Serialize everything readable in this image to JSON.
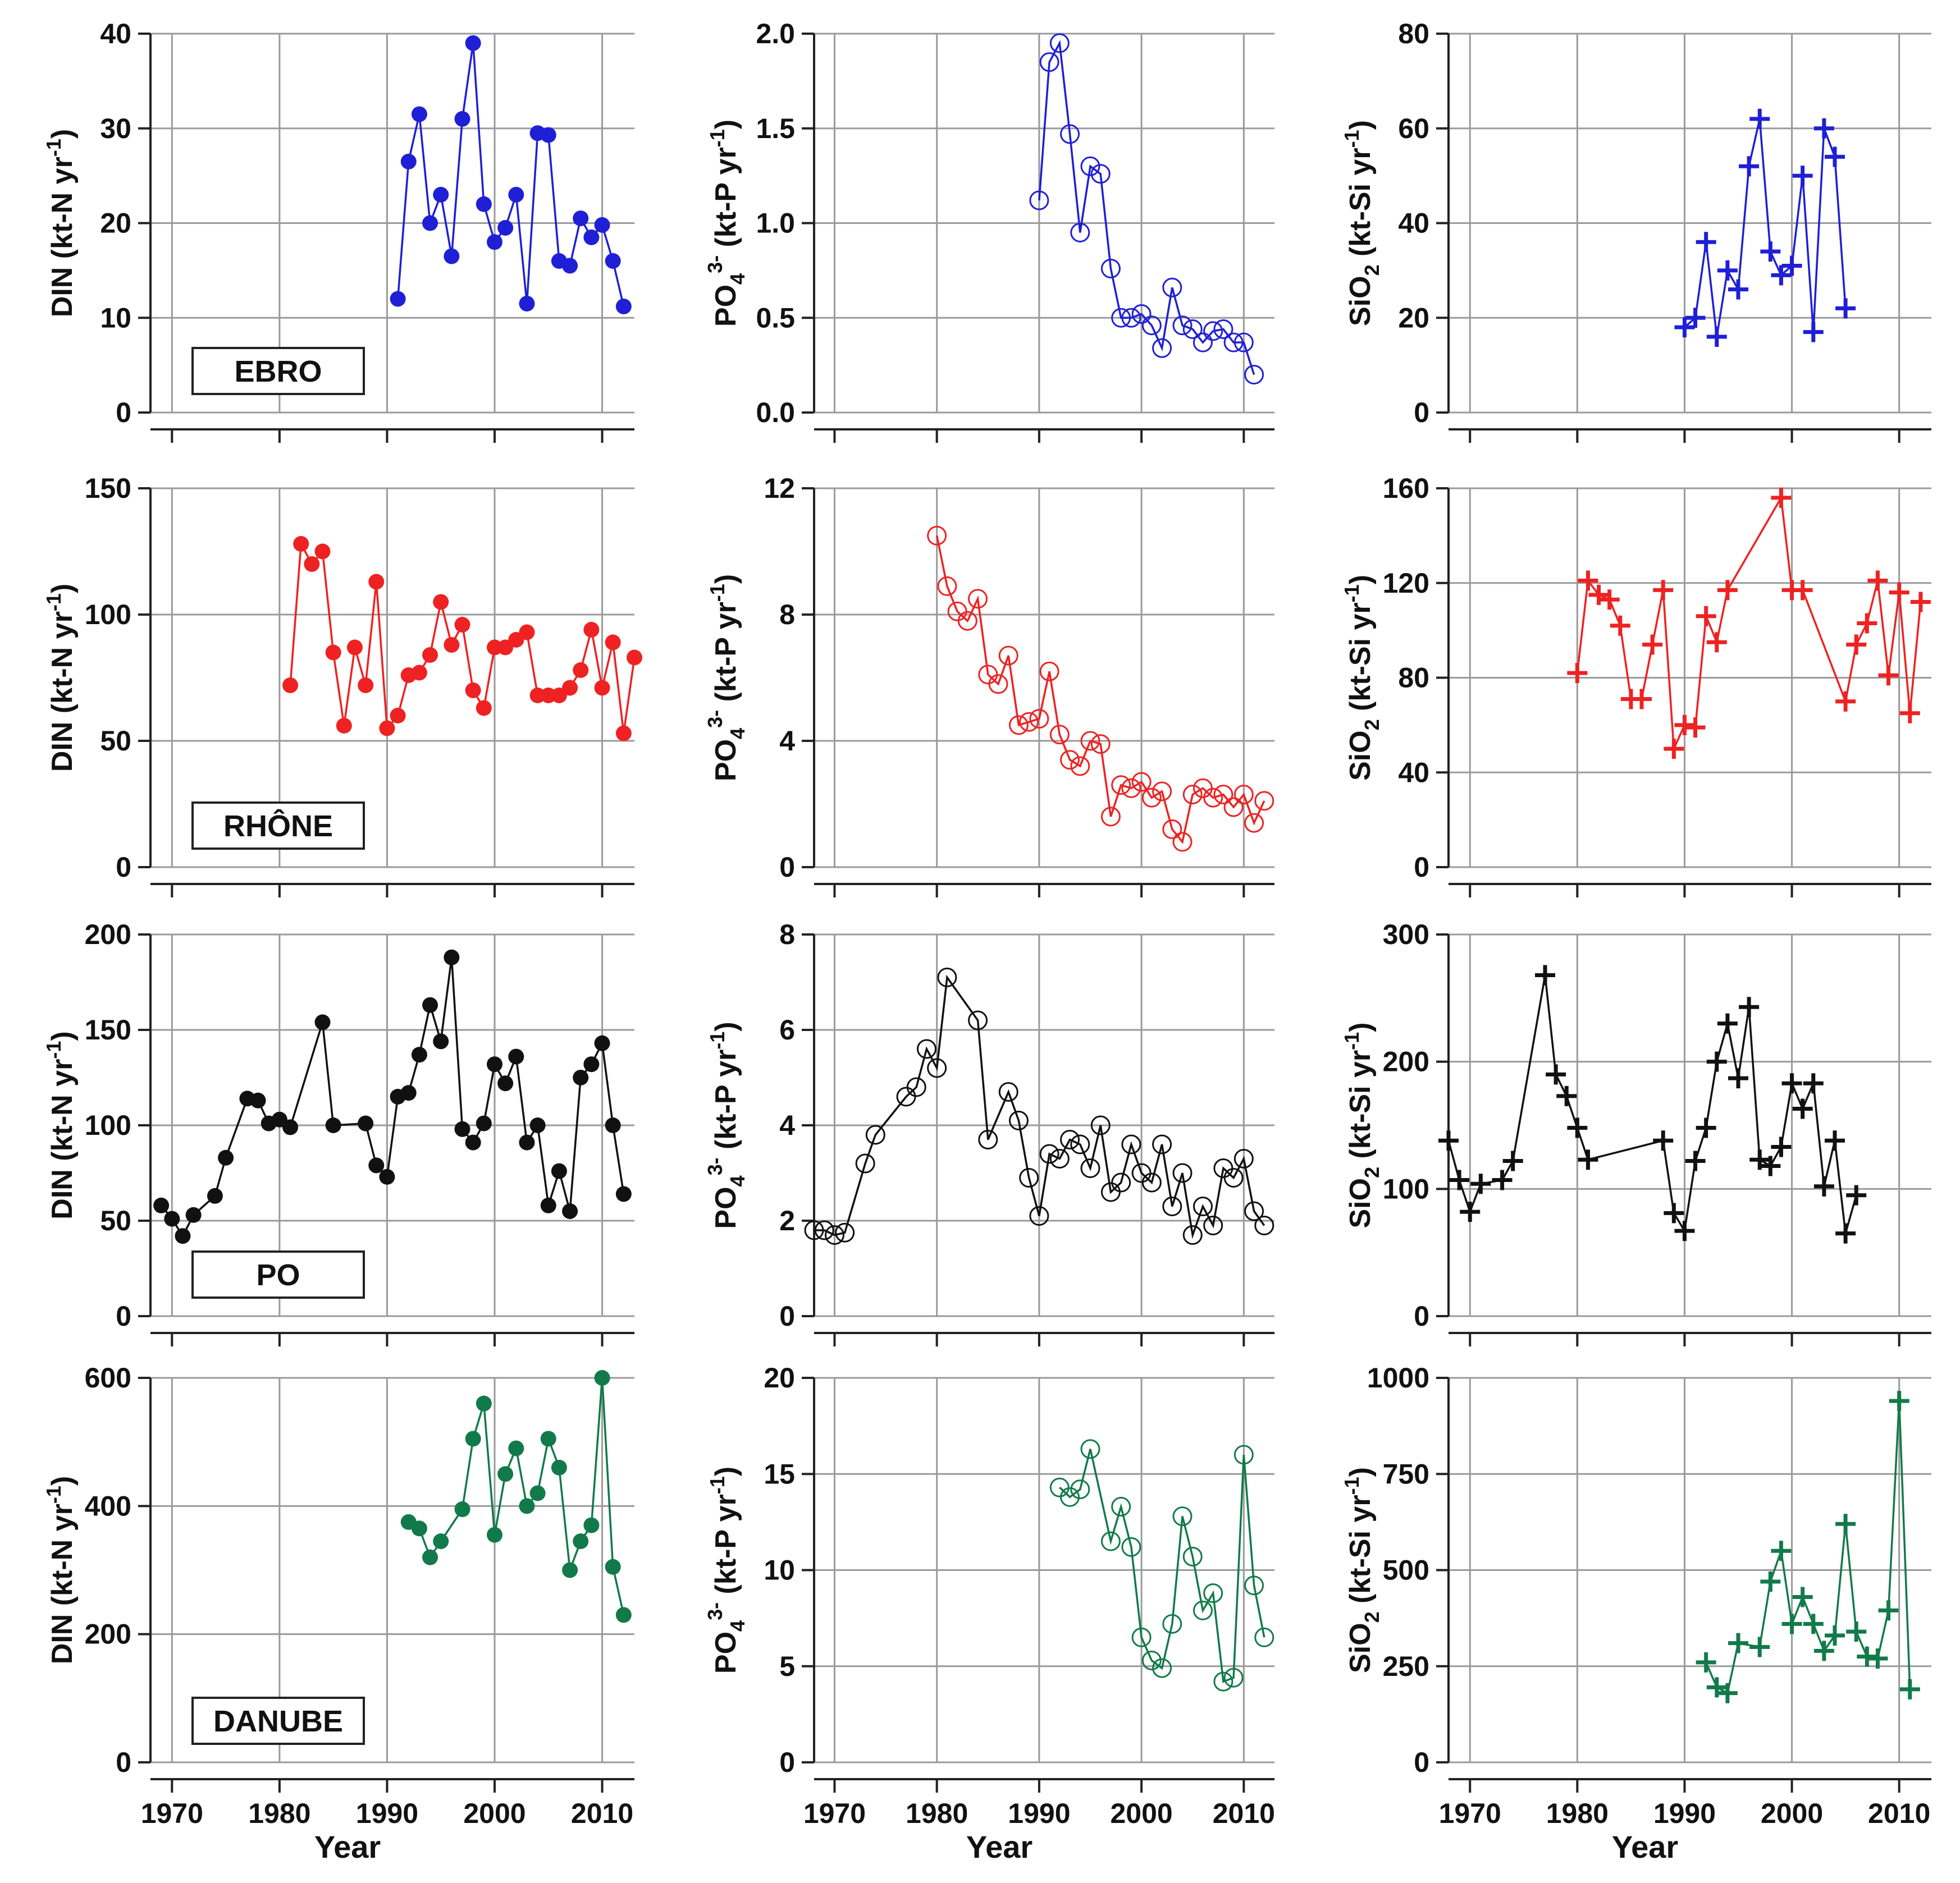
{
  "x_axis": {
    "label": "Year",
    "ticks": [
      "1970",
      "1980",
      "1990",
      "2000",
      "2010"
    ],
    "tick_values": [
      1970,
      1980,
      1990,
      2000,
      2010
    ],
    "range": [
      1968,
      2013
    ]
  },
  "rivers": [
    {
      "name": "EBRO",
      "color": "#1f1fd6"
    },
    {
      "name": "RHÔNE",
      "color": "#ee2222"
    },
    {
      "name": "PO",
      "color": "#111111"
    },
    {
      "name": "DANUBE",
      "color": "#127a4a"
    }
  ],
  "y_labels": {
    "DIN": {
      "main": "DIN (kt-N yr",
      "sup": "-1",
      "close": ")"
    },
    "PO4": {
      "pre": "PO",
      "sub": "4",
      "sup1": "3-",
      "mid": " (kt-P yr",
      "sup2": "-1",
      "close": ")"
    },
    "SiO2": {
      "pre": "SiO",
      "sub": "2",
      "mid": " (kt-Si yr",
      "sup": "-1",
      "close": ")"
    }
  },
  "chart_data": [
    {
      "type": "line",
      "marker": "filled-circle",
      "river": "EBRO",
      "variable": "DIN",
      "ylim": [
        0,
        40
      ],
      "yticks": [
        "0",
        "10",
        "20",
        "30",
        "40"
      ],
      "ytick_values": [
        0,
        10,
        20,
        30,
        40
      ],
      "x": [
        1991,
        1992,
        1993,
        1994,
        1995,
        1996,
        1997,
        1998,
        1999,
        2000,
        2001,
        2002,
        2003,
        2004,
        2005,
        2006,
        2007,
        2008,
        2009,
        2010,
        2011,
        2012
      ],
      "y": [
        12,
        26.5,
        31.5,
        20,
        23,
        16.5,
        31,
        39,
        22,
        18,
        19.5,
        23,
        11.5,
        29.5,
        29.3,
        16,
        15.5,
        20.5,
        18.5,
        19.8,
        16,
        11.2
      ]
    },
    {
      "type": "line",
      "marker": "open-circle",
      "river": "EBRO",
      "variable": "PO4",
      "ylim": [
        0,
        2.0
      ],
      "yticks": [
        "0.0",
        "0.5",
        "1.0",
        "1.5",
        "2.0"
      ],
      "ytick_values": [
        0,
        0.5,
        1.0,
        1.5,
        2.0
      ],
      "x": [
        1990,
        1991,
        1992,
        1993,
        1994,
        1995,
        1996,
        1997,
        1998,
        1999,
        2000,
        2001,
        2002,
        2003,
        2004,
        2005,
        2006,
        2007,
        2008,
        2009,
        2010,
        2011
      ],
      "y": [
        1.12,
        1.85,
        1.95,
        1.47,
        0.95,
        1.3,
        1.26,
        0.76,
        0.5,
        0.5,
        0.52,
        0.46,
        0.34,
        0.66,
        0.46,
        0.44,
        0.37,
        0.43,
        0.44,
        0.37,
        0.37,
        0.2
      ]
    },
    {
      "type": "line",
      "marker": "plus",
      "river": "EBRO",
      "variable": "SiO2",
      "ylim": [
        0,
        80
      ],
      "yticks": [
        "0",
        "20",
        "40",
        "60",
        "80"
      ],
      "ytick_values": [
        0,
        20,
        40,
        60,
        80
      ],
      "x": [
        1990,
        1991,
        1992,
        1993,
        1994,
        1995,
        1996,
        1997,
        1998,
        1999,
        2000,
        2001,
        2002,
        2003,
        2004,
        2005
      ],
      "y": [
        18,
        20,
        36,
        16,
        30,
        26,
        52,
        62,
        34,
        29,
        31,
        50,
        17,
        60,
        54,
        22
      ]
    },
    {
      "type": "line",
      "marker": "filled-circle",
      "river": "RHÔNE",
      "variable": "DIN",
      "ylim": [
        0,
        150
      ],
      "yticks": [
        "0",
        "50",
        "100",
        "150"
      ],
      "ytick_values": [
        0,
        50,
        100,
        150
      ],
      "x": [
        1981,
        1982,
        1983,
        1984,
        1985,
        1986,
        1987,
        1988,
        1989,
        1990,
        1991,
        1992,
        1993,
        1994,
        1995,
        1996,
        1997,
        1998,
        1999,
        2000,
        2001,
        2002,
        2003,
        2004,
        2005,
        2006,
        2007,
        2008,
        2009,
        2010,
        2011,
        2012,
        2013
      ],
      "y": [
        72,
        128,
        120,
        125,
        85,
        56,
        87,
        72,
        113,
        55,
        60,
        76,
        77,
        84,
        105,
        88,
        96,
        70,
        63,
        87,
        87,
        90,
        93,
        68,
        68,
        68,
        71,
        78,
        94,
        71,
        89,
        53,
        83
      ]
    },
    {
      "type": "line",
      "marker": "open-circle",
      "river": "RHÔNE",
      "variable": "PO4",
      "ylim": [
        0,
        12
      ],
      "yticks": [
        "0",
        "4",
        "8",
        "12"
      ],
      "ytick_values": [
        0,
        4,
        8,
        12
      ],
      "x": [
        1980,
        1981,
        1982,
        1983,
        1984,
        1985,
        1986,
        1987,
        1988,
        1989,
        1990,
        1991,
        1992,
        1993,
        1994,
        1995,
        1996,
        1997,
        1998,
        1999,
        2000,
        2001,
        2002,
        2003,
        2004,
        2005,
        2006,
        2007,
        2008,
        2009,
        2010,
        2011,
        2012
      ],
      "y": [
        10.5,
        8.9,
        8.1,
        7.8,
        8.5,
        6.1,
        5.8,
        6.7,
        4.5,
        4.6,
        4.7,
        6.2,
        4.2,
        3.4,
        3.2,
        4.0,
        3.9,
        1.6,
        2.6,
        2.5,
        2.7,
        2.2,
        2.4,
        1.2,
        0.8,
        2.3,
        2.5,
        2.2,
        2.3,
        1.9,
        2.3,
        1.4,
        2.1
      ]
    },
    {
      "type": "line",
      "marker": "plus",
      "river": "RHÔNE",
      "variable": "SiO2",
      "ylim": [
        0,
        160
      ],
      "yticks": [
        "0",
        "40",
        "80",
        "120",
        "160"
      ],
      "ytick_values": [
        0,
        40,
        80,
        120,
        160
      ],
      "x": [
        1980,
        1981,
        1982,
        1983,
        1984,
        1985,
        1986,
        1987,
        1988,
        1989,
        1990,
        1991,
        1992,
        1993,
        1994,
        1999,
        2000,
        2001,
        2005,
        2006,
        2007,
        2008,
        2009,
        2010,
        2011,
        2012
      ],
      "y": [
        82,
        121,
        115,
        113,
        102,
        71,
        71,
        94,
        117,
        50,
        60,
        59,
        106,
        95,
        117,
        156,
        117,
        117,
        70,
        94,
        103,
        121,
        81,
        116,
        65,
        112
      ]
    },
    {
      "type": "line",
      "marker": "filled-circle",
      "river": "PO",
      "variable": "DIN",
      "ylim": [
        0,
        200
      ],
      "yticks": [
        "0",
        "50",
        "100",
        "150",
        "200"
      ],
      "ytick_values": [
        0,
        50,
        100,
        150,
        200
      ],
      "x": [
        1969,
        1970,
        1971,
        1972,
        1974,
        1975,
        1977,
        1978,
        1979,
        1980,
        1981,
        1984,
        1985,
        1988,
        1989,
        1990,
        1991,
        1992,
        1993,
        1994,
        1995,
        1996,
        1997,
        1998,
        1999,
        2000,
        2001,
        2002,
        2003,
        2004,
        2005,
        2006,
        2007,
        2008,
        2009,
        2010,
        2011,
        2012
      ],
      "y": [
        58,
        51,
        42,
        53,
        63,
        83,
        114,
        113,
        101,
        103,
        99,
        154,
        100,
        101,
        79,
        73,
        115,
        117,
        137,
        163,
        144,
        188,
        98,
        91,
        101,
        132,
        122,
        136,
        91,
        100,
        58,
        76,
        55,
        125,
        132,
        143,
        100,
        64
      ]
    },
    {
      "type": "line",
      "marker": "open-circle",
      "river": "PO",
      "variable": "PO4",
      "ylim": [
        0,
        8
      ],
      "yticks": [
        "0",
        "2",
        "4",
        "6",
        "8"
      ],
      "ytick_values": [
        0,
        2,
        4,
        6,
        8
      ],
      "x": [
        1968,
        1969,
        1970,
        1971,
        1973,
        1974,
        1977,
        1978,
        1979,
        1980,
        1981,
        1984,
        1985,
        1987,
        1988,
        1989,
        1990,
        1991,
        1992,
        1993,
        1994,
        1995,
        1996,
        1997,
        1998,
        1999,
        2000,
        2001,
        2002,
        2003,
        2004,
        2005,
        2006,
        2007,
        2008,
        2009,
        2010,
        2011,
        2012
      ],
      "y": [
        1.8,
        1.8,
        1.7,
        1.75,
        3.2,
        3.8,
        4.6,
        4.8,
        5.6,
        5.2,
        7.1,
        6.2,
        3.7,
        4.7,
        4.1,
        2.9,
        2.1,
        3.4,
        3.3,
        3.7,
        3.6,
        3.1,
        4.0,
        2.6,
        2.8,
        3.6,
        3.0,
        2.8,
        3.6,
        2.3,
        3.0,
        1.7,
        2.3,
        1.9,
        3.1,
        2.9,
        3.3,
        2.2,
        1.9
      ]
    },
    {
      "type": "line",
      "marker": "plus",
      "river": "PO",
      "variable": "SiO2",
      "ylim": [
        0,
        300
      ],
      "yticks": [
        "0",
        "100",
        "200",
        "300"
      ],
      "ytick_values": [
        0,
        100,
        200,
        300
      ],
      "x": [
        1968,
        1969,
        1970,
        1971,
        1973,
        1974,
        1977,
        1978,
        1979,
        1980,
        1981,
        1988,
        1989,
        1990,
        1991,
        1992,
        1993,
        1994,
        1995,
        1996,
        1997,
        1998,
        1999,
        2000,
        2001,
        2002,
        2003,
        2004,
        2005,
        2006
      ],
      "y": [
        138,
        107,
        82,
        104,
        107,
        122,
        268,
        190,
        173,
        148,
        123,
        138,
        81,
        67,
        122,
        148,
        200,
        230,
        187,
        243,
        123,
        118,
        133,
        183,
        163,
        183,
        102,
        138,
        65,
        95
      ]
    },
    {
      "type": "line",
      "marker": "filled-circle",
      "river": "DANUBE",
      "variable": "DIN",
      "ylim": [
        0,
        600
      ],
      "yticks": [
        "0",
        "200",
        "400",
        "600"
      ],
      "ytick_values": [
        0,
        200,
        400,
        600
      ],
      "x": [
        1992,
        1993,
        1994,
        1995,
        1997,
        1998,
        1999,
        2000,
        2001,
        2002,
        2003,
        2004,
        2005,
        2006,
        2007,
        2008,
        2009,
        2010,
        2011,
        2012
      ],
      "y": [
        375,
        365,
        320,
        345,
        395,
        505,
        560,
        355,
        450,
        490,
        400,
        420,
        505,
        460,
        300,
        345,
        370,
        600,
        305,
        230
      ]
    },
    {
      "type": "line",
      "marker": "open-circle",
      "river": "DANUBE",
      "variable": "PO4",
      "ylim": [
        0,
        20
      ],
      "yticks": [
        "0",
        "5",
        "10",
        "15",
        "20"
      ],
      "ytick_values": [
        0,
        5,
        10,
        15,
        20
      ],
      "x": [
        1992,
        1993,
        1994,
        1995,
        1997,
        1998,
        1999,
        2000,
        2001,
        2002,
        2003,
        2004,
        2005,
        2006,
        2007,
        2008,
        2009,
        2010,
        2011,
        2012
      ],
      "y": [
        14.3,
        13.8,
        14.2,
        16.3,
        11.5,
        13.3,
        11.2,
        6.5,
        5.3,
        4.9,
        7.2,
        12.8,
        10.7,
        7.9,
        8.8,
        4.2,
        4.4,
        16.0,
        9.2,
        6.5
      ]
    },
    {
      "type": "line",
      "marker": "plus",
      "river": "DANUBE",
      "variable": "SiO2",
      "ylim": [
        0,
        1000
      ],
      "yticks": [
        "0",
        "250",
        "500",
        "750",
        "1000"
      ],
      "ytick_values": [
        0,
        250,
        500,
        750,
        1000
      ],
      "x": [
        1992,
        1993,
        1994,
        1995,
        1997,
        1998,
        1999,
        2000,
        2001,
        2002,
        2003,
        2004,
        2005,
        2006,
        2007,
        2008,
        2009,
        2010,
        2011
      ],
      "y": [
        260,
        195,
        180,
        310,
        300,
        470,
        550,
        360,
        430,
        360,
        290,
        330,
        620,
        340,
        275,
        270,
        395,
        940,
        190
      ]
    }
  ]
}
